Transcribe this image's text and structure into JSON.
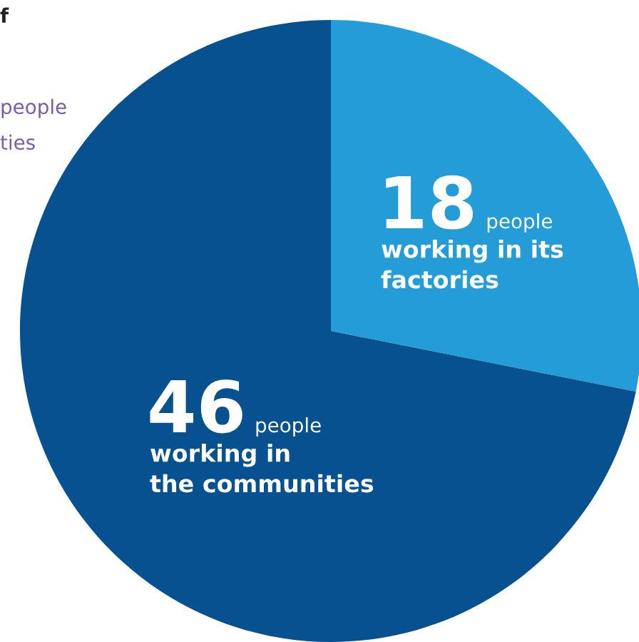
{
  "chart_data": {
    "type": "pie",
    "categories": [
      "people\nworking in its\nfactories",
      "people\nworking in\nthe communities"
    ],
    "values": [
      18,
      46
    ],
    "colors": [
      "#239cd8",
      "#075190"
    ],
    "data_labels": true,
    "annotations": [
      "f",
      "people",
      "ties"
    ]
  }
}
